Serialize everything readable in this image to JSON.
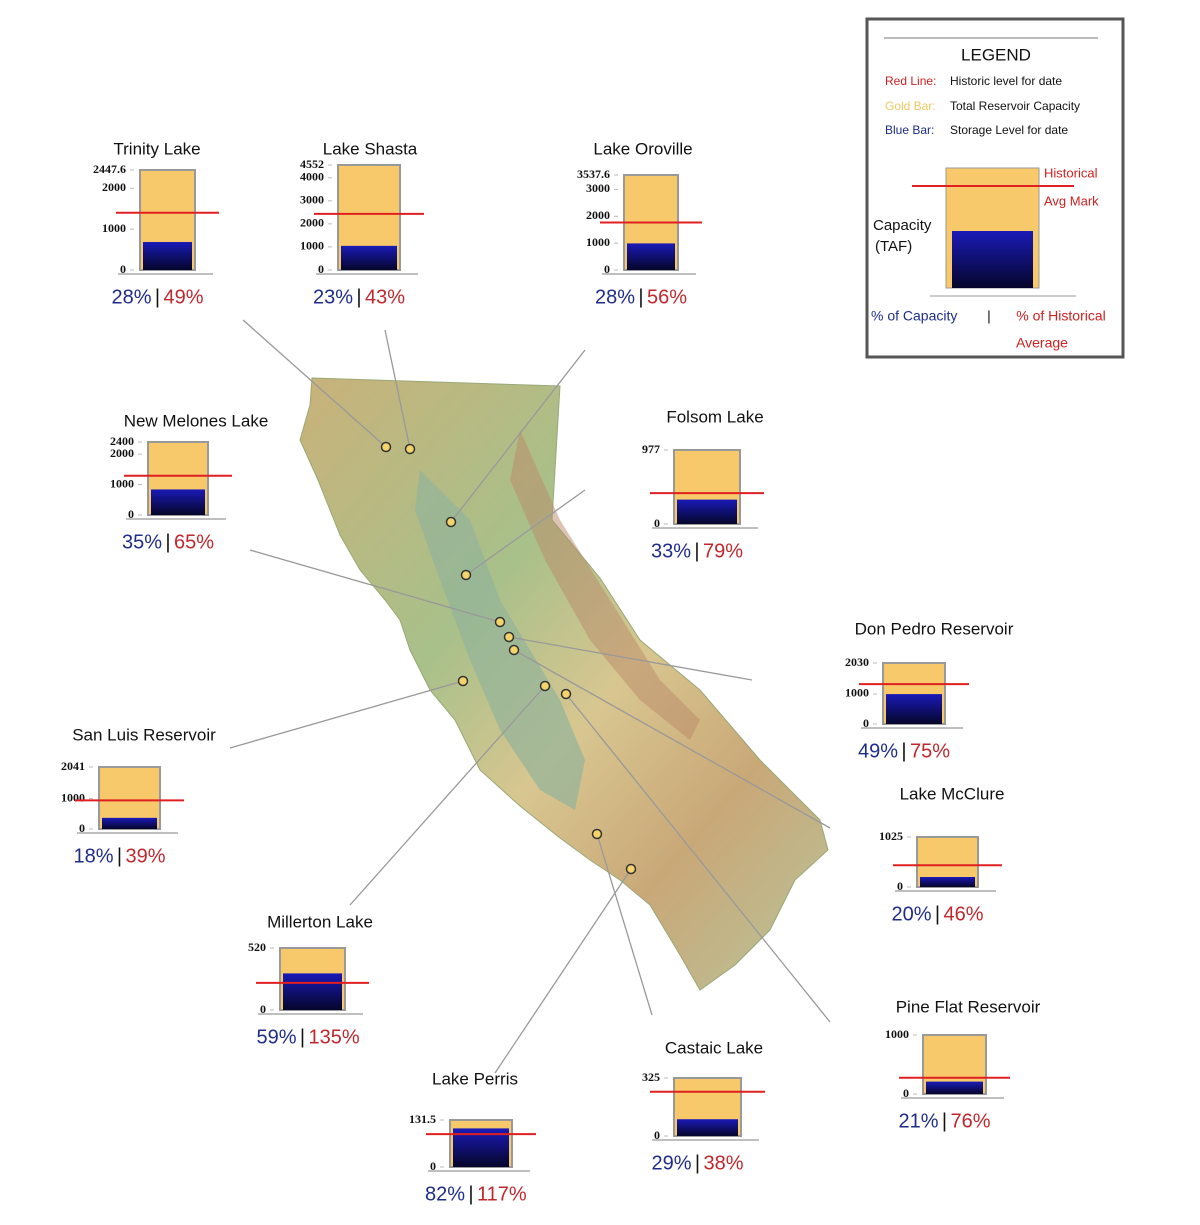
{
  "legend": {
    "title": "LEGEND",
    "items": [
      {
        "key": "Red Line:",
        "text": "Historic level for date"
      },
      {
        "key": "Gold Bar:",
        "text": "Total Reservoir Capacity"
      },
      {
        "key": "Blue Bar:",
        "text": "Storage Level for date"
      }
    ],
    "mark_label": [
      "Historical",
      "Avg Mark"
    ],
    "axis_label": [
      "Capacity",
      "(TAF)"
    ],
    "pct_capacity": "% of Capacity",
    "separator": "|",
    "pct_historical": [
      "% of Historical",
      "Average"
    ]
  },
  "reservoirs": [
    {
      "name": "Trinity Lake",
      "yticks": [
        0,
        1000,
        2000,
        2447.6
      ],
      "ylim": [
        0,
        2447.6
      ],
      "capacity": 2447.6,
      "storage": 685,
      "historic": 1400,
      "pct_capacity": "28%",
      "pct_historical": "49%"
    },
    {
      "name": "Lake Shasta",
      "yticks": [
        0,
        1000,
        2000,
        3000,
        4000,
        4552
      ],
      "ylim": [
        0,
        4552
      ],
      "capacity": 4552,
      "storage": 1047,
      "historic": 2435,
      "pct_capacity": "23%",
      "pct_historical": "43%"
    },
    {
      "name": "Lake Oroville",
      "yticks": [
        0,
        1000,
        2000,
        3000,
        3537.6
      ],
      "ylim": [
        0,
        3537.6
      ],
      "capacity": 3537.6,
      "storage": 990,
      "historic": 1770,
      "pct_capacity": "28%",
      "pct_historical": "56%"
    },
    {
      "name": "New Melones Lake",
      "yticks": [
        0,
        1000,
        2000,
        2400
      ],
      "ylim": [
        0,
        2400
      ],
      "capacity": 2400,
      "storage": 840,
      "historic": 1290,
      "pct_capacity": "35%",
      "pct_historical": "65%"
    },
    {
      "name": "Folsom Lake",
      "yticks": [
        0,
        977
      ],
      "ylim": [
        0,
        977
      ],
      "capacity": 977,
      "storage": 322,
      "historic": 408,
      "pct_capacity": "33%",
      "pct_historical": "79%"
    },
    {
      "name": "Don Pedro Reservoir",
      "yticks": [
        0,
        1000,
        2030
      ],
      "ylim": [
        0,
        2030
      ],
      "capacity": 2030,
      "storage": 995,
      "historic": 1326,
      "pct_capacity": "49%",
      "pct_historical": "75%"
    },
    {
      "name": "San Luis Reservoir",
      "yticks": [
        0,
        1000,
        2041
      ],
      "ylim": [
        0,
        2041
      ],
      "capacity": 2041,
      "storage": 367,
      "historic": 942,
      "pct_capacity": "18%",
      "pct_historical": "39%"
    },
    {
      "name": "Lake McClure",
      "yticks": [
        0,
        1025
      ],
      "ylim": [
        0,
        1025
      ],
      "capacity": 1025,
      "storage": 205,
      "historic": 446,
      "pct_capacity": "20%",
      "pct_historical": "46%"
    },
    {
      "name": "Millerton Lake",
      "yticks": [
        0,
        520
      ],
      "ylim": [
        0,
        520
      ],
      "capacity": 520,
      "storage": 307,
      "historic": 227,
      "pct_capacity": "59%",
      "pct_historical": "135%"
    },
    {
      "name": "Pine Flat Reservoir",
      "yticks": [
        0,
        1000
      ],
      "ylim": [
        0,
        1000
      ],
      "capacity": 1000,
      "storage": 210,
      "historic": 276,
      "pct_capacity": "21%",
      "pct_historical": "76%"
    },
    {
      "name": "Castaic Lake",
      "yticks": [
        0,
        325
      ],
      "ylim": [
        0,
        325
      ],
      "capacity": 325,
      "storage": 94,
      "historic": 248,
      "pct_capacity": "29%",
      "pct_historical": "38%"
    },
    {
      "name": "Lake Perris",
      "yticks": [
        0,
        131.5
      ],
      "ylim": [
        0,
        131.5
      ],
      "capacity": 131.5,
      "storage": 108,
      "historic": 92,
      "pct_capacity": "82%",
      "pct_historical": "117%"
    }
  ]
}
